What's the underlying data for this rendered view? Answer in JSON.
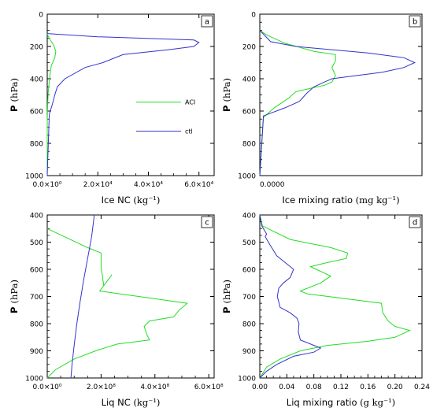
{
  "chart_data": [
    {
      "type": "line",
      "panel_label": "a",
      "xlabel": "Ice NC",
      "xunit": "(kg⁻¹)",
      "ylabel": "P",
      "yunit": "(hPa)",
      "xlim": [
        0,
        66000
      ],
      "ylim": [
        1000,
        0
      ],
      "xticks": [
        0,
        20000,
        40000,
        60000
      ],
      "xticklabels": [
        "0.0×10⁰",
        "2.0×10⁴",
        "4.0×10⁴",
        "6.0×10⁴"
      ],
      "yticks": [
        0,
        200,
        400,
        600,
        800,
        1000
      ],
      "yticklabels": [
        "0",
        "200",
        "400",
        "600",
        "800",
        "1000"
      ],
      "legend": {
        "placement": "center-right",
        "entries": [
          {
            "name": "ACI",
            "color": "#22dd22"
          },
          {
            "name": "ctl",
            "color": "#3333cc"
          }
        ]
      },
      "series": [
        {
          "name": "ACI",
          "color": "#22dd22",
          "x": [
            0,
            200,
            1200,
            2500,
            3400,
            3000,
            1600,
            900,
            400,
            150,
            0,
            0
          ],
          "y": [
            120,
            130,
            160,
            190,
            230,
            270,
            320,
            400,
            480,
            560,
            650,
            1000
          ]
        },
        {
          "name": "ctl",
          "color": "#3333cc",
          "x": [
            0,
            20000,
            58000,
            60000,
            58000,
            48000,
            30000,
            22000,
            15000,
            7000,
            4000,
            3000,
            2000,
            800,
            0
          ],
          "y": [
            120,
            140,
            160,
            175,
            200,
            220,
            250,
            300,
            330,
            400,
            450,
            500,
            560,
            620,
            1000
          ]
        }
      ]
    },
    {
      "type": "line",
      "panel_label": "b",
      "xlabel": "Ice mixing ratio",
      "xunit": "(mg kg⁻¹)",
      "ylabel": "P",
      "yunit": "(hPa)",
      "xlim": [
        0,
        0.0045
      ],
      "ylim": [
        1000,
        0
      ],
      "xticks": [
        0
      ],
      "xticklabels": [
        "0.0000"
      ],
      "yticks": [
        0,
        200,
        400,
        600,
        800,
        1000
      ],
      "yticklabels": [
        "0",
        "200",
        "400",
        "600",
        "800",
        "1000"
      ],
      "series": [
        {
          "name": "ACI",
          "color": "#22dd22",
          "x": [
            0,
            0.0002,
            0.0007,
            0.0015,
            0.0021,
            0.0021,
            0.002,
            0.0021,
            0.002,
            0.0018,
            0.0014,
            0.001,
            0.0008,
            0.0004,
            0.0001,
            0
          ],
          "y": [
            100,
            130,
            180,
            230,
            250,
            290,
            330,
            380,
            420,
            440,
            460,
            480,
            520,
            580,
            640,
            1000
          ]
        },
        {
          "name": "ctl",
          "color": "#3333cc",
          "x": [
            0,
            0.0003,
            0.001,
            0.003,
            0.004,
            0.0043,
            0.004,
            0.0034,
            0.002,
            0.0018,
            0.0015,
            0.0013,
            0.0011,
            0.0007,
            0.0001,
            0
          ],
          "y": [
            100,
            170,
            200,
            240,
            270,
            300,
            330,
            360,
            400,
            420,
            450,
            490,
            540,
            580,
            630,
            1000
          ]
        }
      ]
    },
    {
      "type": "line",
      "panel_label": "c",
      "xlabel": "Liq NC",
      "xunit": "(kg⁻¹)",
      "ylabel": "P",
      "yunit": "(hPa)",
      "xlim": [
        0,
        620000000
      ],
      "ylim": [
        1000,
        400
      ],
      "xticks": [
        0,
        200000000,
        400000000,
        600000000
      ],
      "xticklabels": [
        "0.0×10⁰",
        "2.0×10⁸",
        "4.0×10⁸",
        "6.0×10⁸"
      ],
      "yticks": [
        400,
        500,
        600,
        700,
        800,
        900,
        1000
      ],
      "yticklabels": [
        "400",
        "500",
        "600",
        "700",
        "800",
        "900",
        "1000"
      ],
      "series": [
        {
          "name": "ACI",
          "color": "#22dd22",
          "x": [
            0,
            150000000,
            200000000,
            200000000,
            210000000,
            240000000,
            195000000,
            520000000,
            490000000,
            470000000,
            380000000,
            360000000,
            370000000,
            380000000,
            260000000,
            180000000,
            100000000,
            30000000,
            0
          ],
          "y": [
            450,
            520,
            540,
            590,
            660,
            620,
            680,
            725,
            750,
            775,
            790,
            810,
            840,
            860,
            875,
            900,
            930,
            970,
            1000
          ]
        },
        {
          "name": "ctl",
          "color": "#3333cc",
          "x": [
            175000000,
            165000000,
            150000000,
            135000000,
            122000000,
            110000000,
            100000000,
            92000000,
            88000000
          ],
          "y": [
            400,
            480,
            560,
            640,
            720,
            800,
            880,
            950,
            1000
          ]
        }
      ]
    },
    {
      "type": "line",
      "panel_label": "d",
      "xlabel": "Liq mixing ratio",
      "xunit": "(g kg⁻¹)",
      "ylabel": "P",
      "yunit": "(hPa)",
      "xlim": [
        0,
        0.24
      ],
      "ylim": [
        1000,
        400
      ],
      "xticks": [
        0,
        0.04,
        0.08,
        0.12,
        0.16,
        0.2,
        0.24
      ],
      "xticklabels": [
        "0.00",
        "0.04",
        "0.08",
        "0.12",
        "0.16",
        "0.20",
        "0.24"
      ],
      "yticks": [
        400,
        500,
        600,
        700,
        800,
        900,
        1000
      ],
      "yticklabels": [
        "400",
        "500",
        "600",
        "700",
        "800",
        "900",
        "1000"
      ],
      "series": [
        {
          "name": "ACI",
          "color": "#22dd22",
          "x": [
            0,
            0.004,
            0.02,
            0.045,
            0.105,
            0.13,
            0.128,
            0.1,
            0.075,
            0.105,
            0.09,
            0.06,
            0.07,
            0.18,
            0.182,
            0.19,
            0.2,
            0.222,
            0.2,
            0.16,
            0.1,
            0.06,
            0.03,
            0.01,
            0
          ],
          "y": [
            400,
            440,
            460,
            490,
            520,
            540,
            560,
            575,
            590,
            625,
            650,
            680,
            690,
            725,
            760,
            790,
            810,
            825,
            850,
            865,
            880,
            900,
            930,
            960,
            1000
          ]
        },
        {
          "name": "ctl",
          "color": "#3333cc",
          "x": [
            0,
            0.003,
            0.01,
            0.008,
            0.015,
            0.025,
            0.035,
            0.05,
            0.045,
            0.035,
            0.028,
            0.026,
            0.03,
            0.045,
            0.055,
            0.058,
            0.057,
            0.06,
            0.09,
            0.08,
            0.05,
            0.025,
            0.01,
            0
          ],
          "y": [
            400,
            440,
            470,
            480,
            510,
            550,
            570,
            600,
            630,
            650,
            670,
            700,
            740,
            760,
            780,
            800,
            830,
            860,
            890,
            905,
            920,
            950,
            975,
            1000
          ]
        }
      ]
    }
  ]
}
